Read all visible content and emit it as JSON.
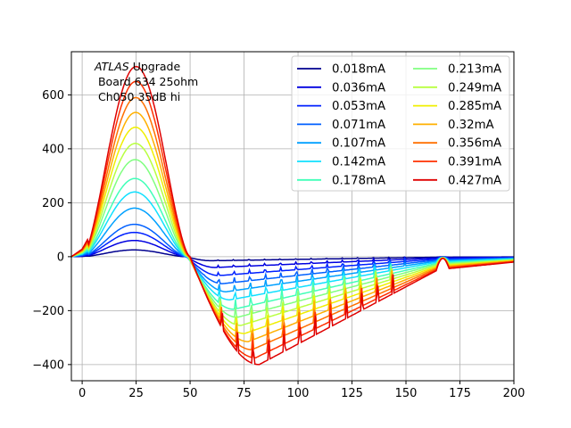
{
  "chart_data": {
    "type": "line",
    "title": "",
    "xlabel": "",
    "ylabel": "",
    "xlim": [
      -5,
      200
    ],
    "ylim": [
      -460,
      760
    ],
    "grid": true,
    "legend_position": "top-right",
    "legend_columns": 2,
    "xticks": [
      0,
      25,
      50,
      75,
      100,
      125,
      150,
      175,
      200
    ],
    "xtick_labels": [
      "0",
      "25",
      "50",
      "75",
      "100",
      "125",
      "150",
      "175",
      "200"
    ],
    "yticks": [
      600,
      400,
      200,
      0,
      -200,
      -400
    ],
    "ytick_labels": [
      "600",
      "400",
      "200",
      "0",
      "−200",
      "−400"
    ],
    "annotation": {
      "line1_italic": "ATLAS",
      "line1_rest": " Upgrade",
      "line2": " Board 634 25ohm",
      "line3": " Ch050 35dB hi"
    },
    "series": [
      {
        "name": "0.018mA",
        "color": "#00008f",
        "peak": 25,
        "trough": -15
      },
      {
        "name": "0.036mA",
        "color": "#0000e0",
        "peak": 60,
        "trough": -40
      },
      {
        "name": "0.053mA",
        "color": "#0020ff",
        "peak": 90,
        "trough": -70
      },
      {
        "name": "0.071mA",
        "color": "#0060ff",
        "peak": 120,
        "trough": -100
      },
      {
        "name": "0.107mA",
        "color": "#00a0ff",
        "peak": 180,
        "trough": -130
      },
      {
        "name": "0.142mA",
        "color": "#10e0ff",
        "peak": 240,
        "trough": -160
      },
      {
        "name": "0.178mA",
        "color": "#40ffb8",
        "peak": 290,
        "trough": -195
      },
      {
        "name": "0.213mA",
        "color": "#80ff80",
        "peak": 360,
        "trough": -225
      },
      {
        "name": "0.249mA",
        "color": "#b8ff40",
        "peak": 420,
        "trough": -255
      },
      {
        "name": "0.285mA",
        "color": "#f0ef00",
        "peak": 480,
        "trough": -285
      },
      {
        "name": "0.32mA",
        "color": "#ffb000",
        "peak": 535,
        "trough": -315
      },
      {
        "name": "0.356mA",
        "color": "#ff7000",
        "peak": 590,
        "trough": -345
      },
      {
        "name": "0.391mA",
        "color": "#ff3000",
        "peak": 650,
        "trough": -375
      },
      {
        "name": "0.427mA",
        "color": "#df0000",
        "peak": 705,
        "trough": -400
      }
    ]
  }
}
